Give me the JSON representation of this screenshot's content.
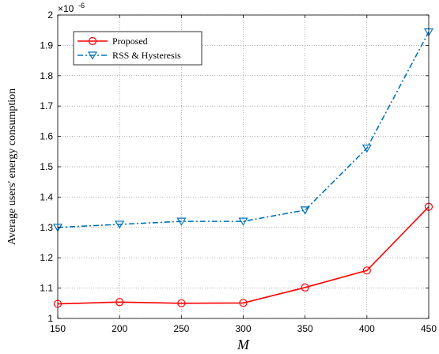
{
  "chart_data": {
    "type": "line",
    "title": "",
    "xlabel": "M",
    "ylabel": "Average users' energy consumption",
    "y_multiplier_label": "×10",
    "y_multiplier_exponent": "-6",
    "x": [
      150,
      200,
      250,
      300,
      350,
      400,
      450
    ],
    "xlim": [
      150,
      450
    ],
    "ylim": [
      1.0,
      2.0
    ],
    "xticks": [
      150,
      200,
      250,
      300,
      350,
      400,
      450
    ],
    "yticks": [
      1,
      1.1,
      1.2,
      1.3,
      1.4,
      1.5,
      1.6,
      1.7,
      1.8,
      1.9,
      2
    ],
    "ytick_labels": [
      "1",
      "1.1",
      "1.2",
      "1.3",
      "1.4",
      "1.5",
      "1.6",
      "1.7",
      "1.8",
      "1.9",
      "2"
    ],
    "grid": true,
    "legend_position": "top-left",
    "series": [
      {
        "name": "Proposed",
        "values": [
          1.048,
          1.054,
          1.05,
          1.051,
          1.102,
          1.158,
          1.368
        ],
        "color": "#ff0000",
        "line_style": "solid",
        "marker": "circle"
      },
      {
        "name": "RSS & Hysteresis",
        "values": [
          1.3,
          1.31,
          1.32,
          1.32,
          1.357,
          1.561,
          1.944
        ],
        "color": "#0072bd",
        "line_style": "dash-dot",
        "marker": "triangle-down"
      }
    ]
  }
}
